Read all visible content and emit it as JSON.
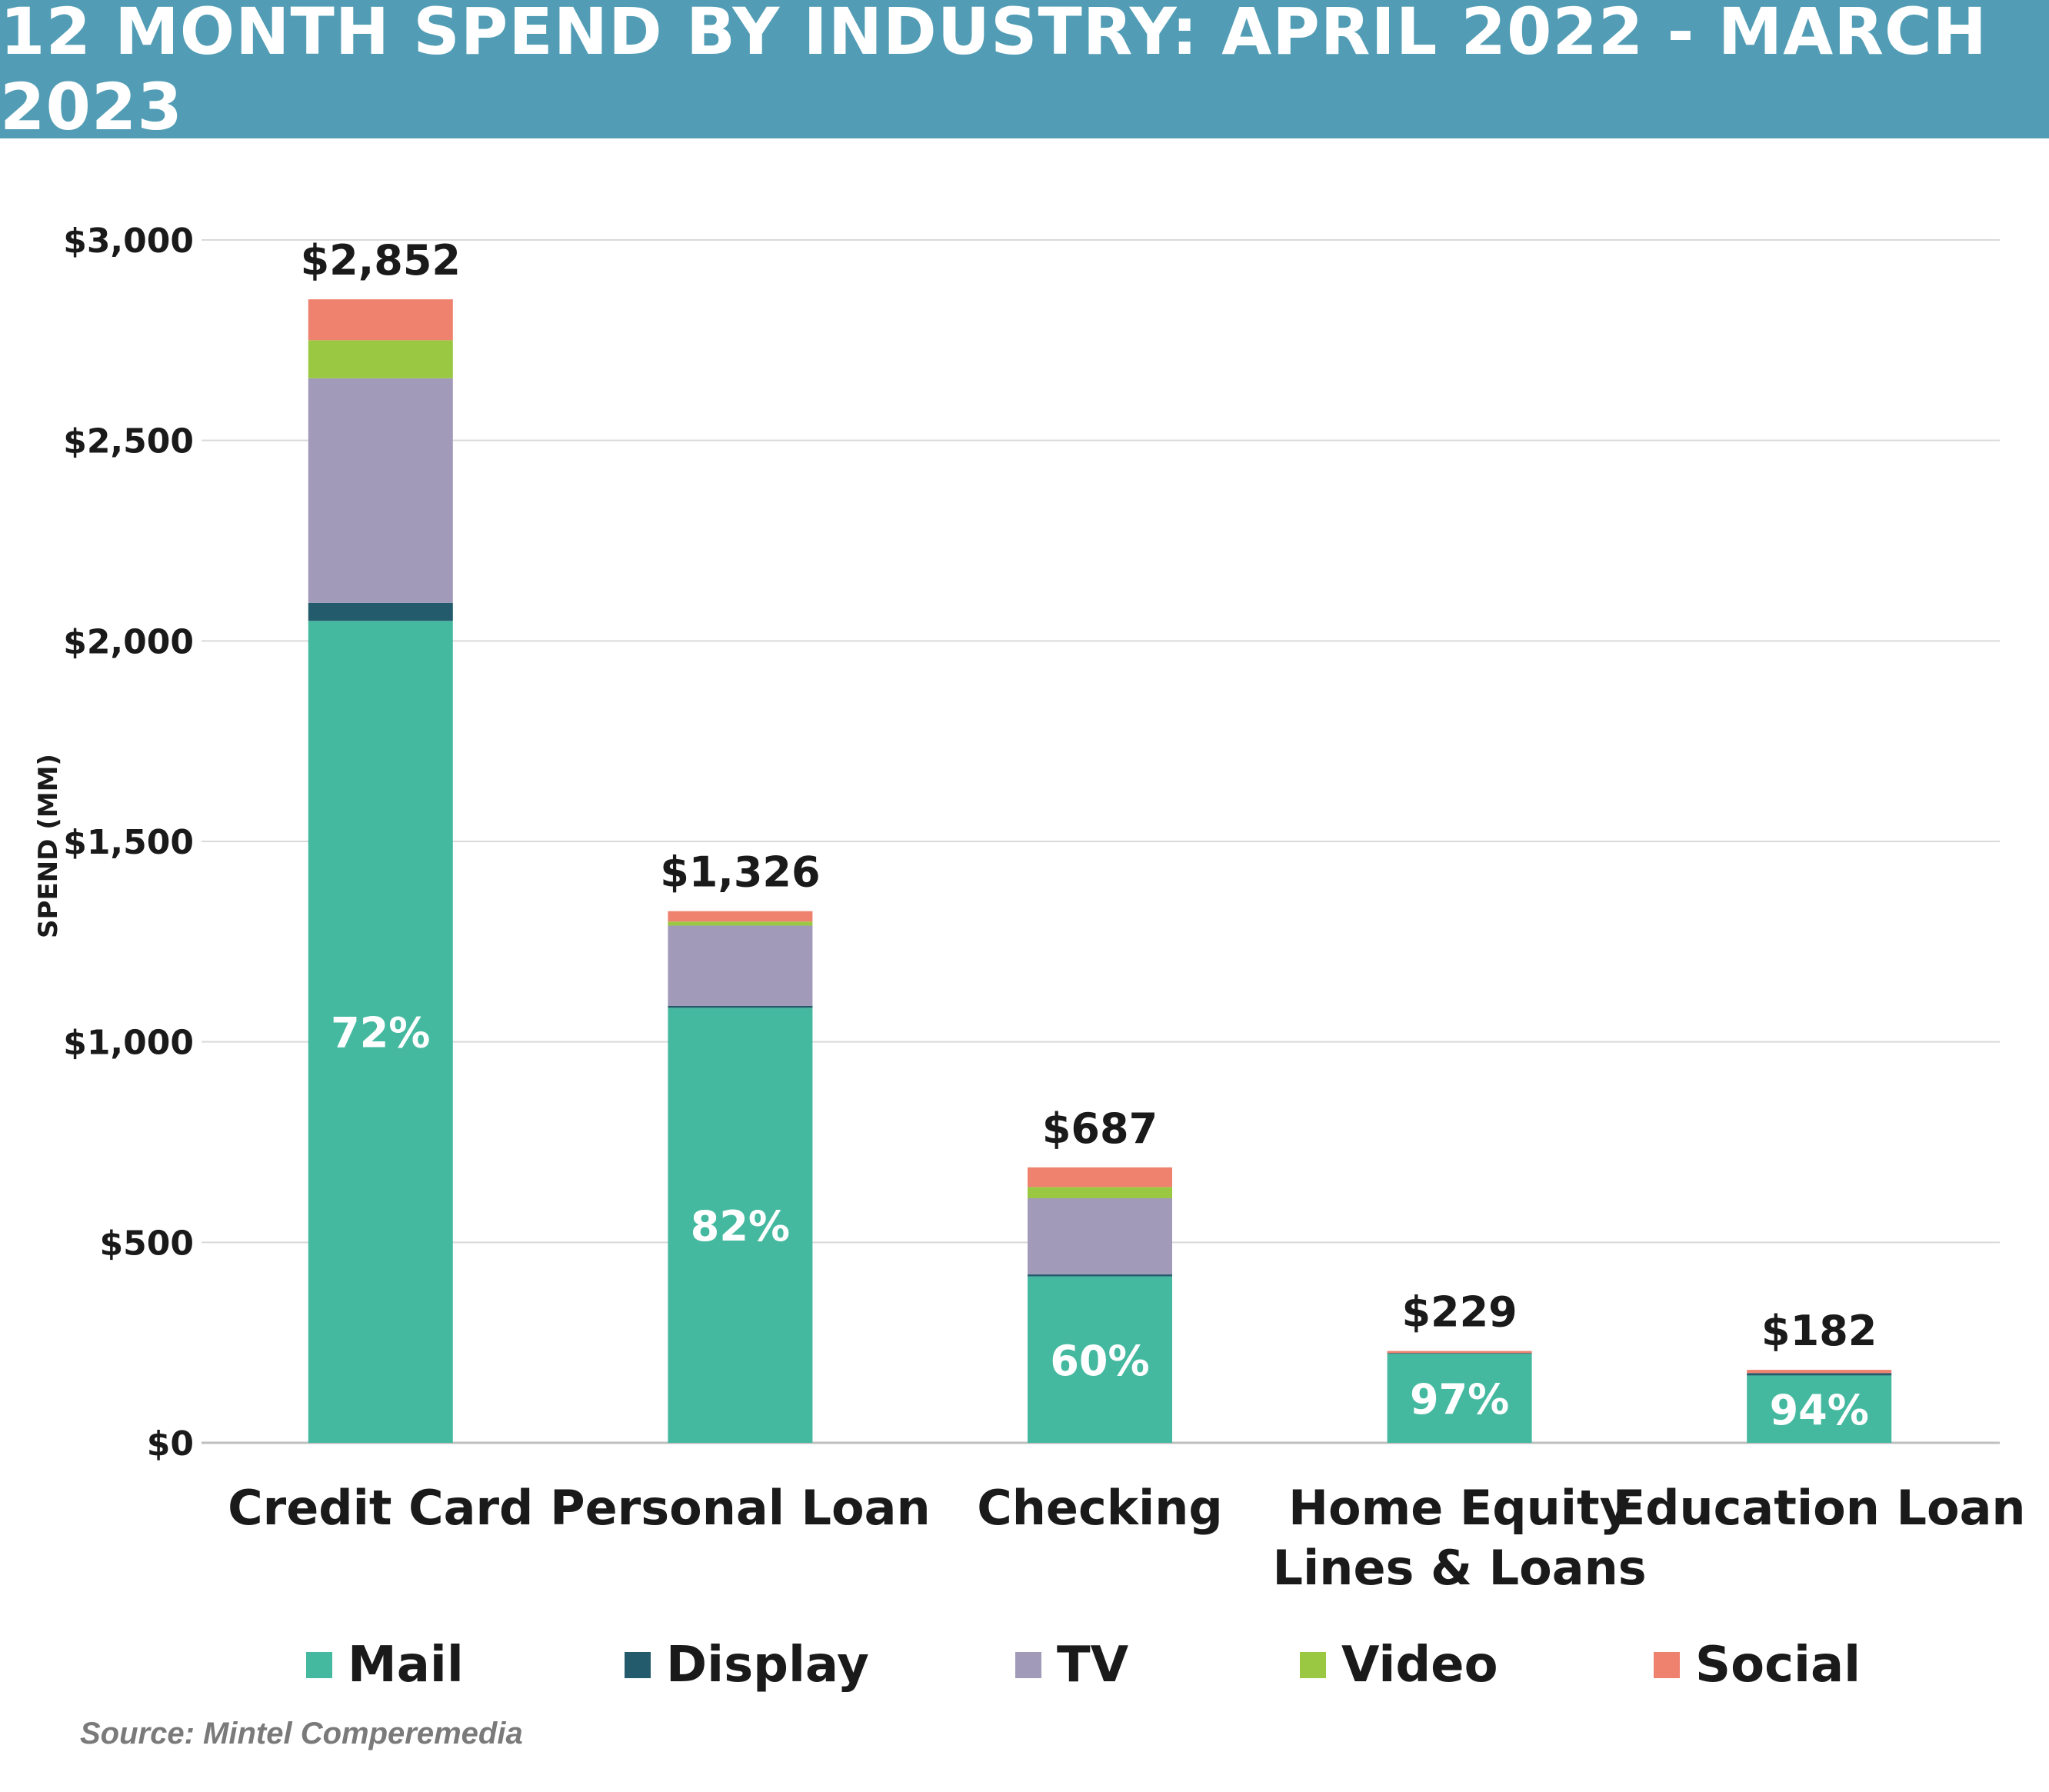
{
  "title": "12 MONTH SPEND BY INDUSTRY: APRIL 2022 - MARCH 2023",
  "source": "Source: Mintel Comperemedia",
  "colors": {
    "banner": "#529db5",
    "Mail": "#45b9a0",
    "Display": "#245b6c",
    "TV": "#a29ab9",
    "Video": "#9bc842",
    "Social": "#ef826f",
    "grid": "#d9d9d9"
  },
  "chart_data": {
    "type": "bar",
    "stacked": true,
    "title": "12 MONTH SPEND BY INDUSTRY: APRIL 2022 - MARCH 2023",
    "xlabel": "",
    "ylabel": "SPEND (MM)",
    "ylim": [
      0,
      3000
    ],
    "yticks": [
      0,
      500,
      1000,
      1500,
      2000,
      2500,
      3000
    ],
    "ytick_labels": [
      "$0",
      "$500",
      "$1,000",
      "$1,500",
      "$2,000",
      "$2,500",
      "$3,000"
    ],
    "grid": true,
    "legend_position": "bottom",
    "categories": [
      "Credit Card",
      "Personal Loan",
      "Checking",
      "Home Equity Lines & Loans",
      "Education Loan"
    ],
    "category_lines": [
      [
        "Credit Card"
      ],
      [
        "Personal Loan"
      ],
      [
        "Checking"
      ],
      [
        "Home Equity",
        "Lines & Loans"
      ],
      [
        "Education Loan"
      ]
    ],
    "totals": [
      2852,
      1326,
      687,
      229,
      182
    ],
    "total_labels": [
      "$2,852",
      "$1,326",
      "$687",
      "$229",
      "$182"
    ],
    "mail_share_labels": [
      "72%",
      "82%",
      "60%",
      "97%",
      "94%"
    ],
    "series": [
      {
        "name": "Mail",
        "values": [
          2050,
          1085,
          415,
          222,
          168
        ]
      },
      {
        "name": "Display",
        "values": [
          45,
          5,
          5,
          2,
          6
        ]
      },
      {
        "name": "TV",
        "values": [
          560,
          200,
          190,
          0,
          0
        ]
      },
      {
        "name": "Video",
        "values": [
          95,
          10,
          28,
          0,
          0
        ]
      },
      {
        "name": "Social",
        "values": [
          102,
          26,
          49,
          5,
          8
        ]
      }
    ]
  }
}
